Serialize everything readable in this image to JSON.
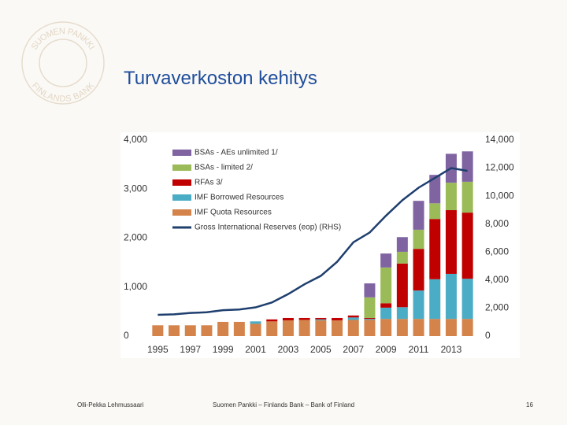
{
  "logo": {
    "top": "SUOMEN PANKKI",
    "bottom": "FINLANDS BANK"
  },
  "title": "Turvaverkoston kehitys",
  "footer": {
    "author": "Olli-Pekka Lehmussaari",
    "organization": "Suomen Pankki – Finlands Bank – Bank of Finland",
    "page": "16"
  },
  "chart_data": {
    "type": "bar",
    "stacked": true,
    "categories": [
      "1995",
      null,
      "1997",
      null,
      "1999",
      null,
      "2001",
      null,
      "2003",
      null,
      "2005",
      null,
      "2007",
      null,
      "2009",
      null,
      "2011",
      null,
      "2013",
      null
    ],
    "series": [
      {
        "name": "IMF Quota Resources",
        "color": "#d4834a",
        "values": [
          220,
          220,
          220,
          220,
          290,
          290,
          250,
          300,
          320,
          330,
          320,
          320,
          330,
          330,
          350,
          350,
          350,
          350,
          350,
          350
        ]
      },
      {
        "name": "IMF Borrowed Resources",
        "color": "#4bacc6",
        "values": [
          0,
          0,
          0,
          0,
          0,
          0,
          50,
          0,
          0,
          0,
          20,
          0,
          50,
          20,
          230,
          240,
          580,
          810,
          920,
          820
        ]
      },
      {
        "name": "RFAs 3/",
        "color": "#c00000",
        "values": [
          0,
          0,
          0,
          0,
          0,
          0,
          0,
          40,
          50,
          40,
          30,
          50,
          40,
          20,
          90,
          890,
          850,
          1230,
          1300,
          1350
        ]
      },
      {
        "name": "BSAs - limited 2/",
        "color": "#9bbb59",
        "values": [
          0,
          0,
          0,
          0,
          0,
          0,
          0,
          0,
          0,
          0,
          0,
          0,
          0,
          420,
          730,
          240,
          390,
          320,
          560,
          630
        ]
      },
      {
        "name": "BSAs - AEs unlimited 1/",
        "color": "#8064a2",
        "values": [
          0,
          0,
          0,
          0,
          0,
          0,
          0,
          0,
          0,
          0,
          0,
          0,
          0,
          285,
          285,
          300,
          590,
          580,
          590,
          620
        ]
      },
      {
        "name": "Gross International Reserves (eop) (RHS)",
        "type": "line",
        "axis": "y2",
        "color": "#1f3f6e",
        "values": [
          1520,
          1550,
          1650,
          1700,
          1850,
          1900,
          2050,
          2400,
          3000,
          3700,
          4300,
          5300,
          6700,
          7400,
          8600,
          9700,
          10600,
          11300,
          12000,
          11800
        ]
      }
    ],
    "ylim": [
      0,
      4000
    ],
    "yticks": [
      0,
      {
        "value": 1000,
        "label": "1,000"
      },
      {
        "value": 2000,
        "label": "2,000"
      },
      {
        "value": 3000,
        "label": "3,000"
      },
      {
        "value": 4000,
        "label": "4,000"
      }
    ],
    "y2lim": [
      0,
      14000
    ],
    "y2ticks": [
      0,
      {
        "value": 2000,
        "label": "2,000"
      },
      {
        "value": 4000,
        "label": "4,000"
      },
      {
        "value": 6000,
        "label": "6,000"
      },
      {
        "value": 8000,
        "label": "8,000"
      },
      {
        "value": 10000,
        "label": "10,000"
      },
      {
        "value": 12000,
        "label": "12,000"
      },
      {
        "value": 14000,
        "label": "14,000"
      }
    ],
    "grid": false
  }
}
